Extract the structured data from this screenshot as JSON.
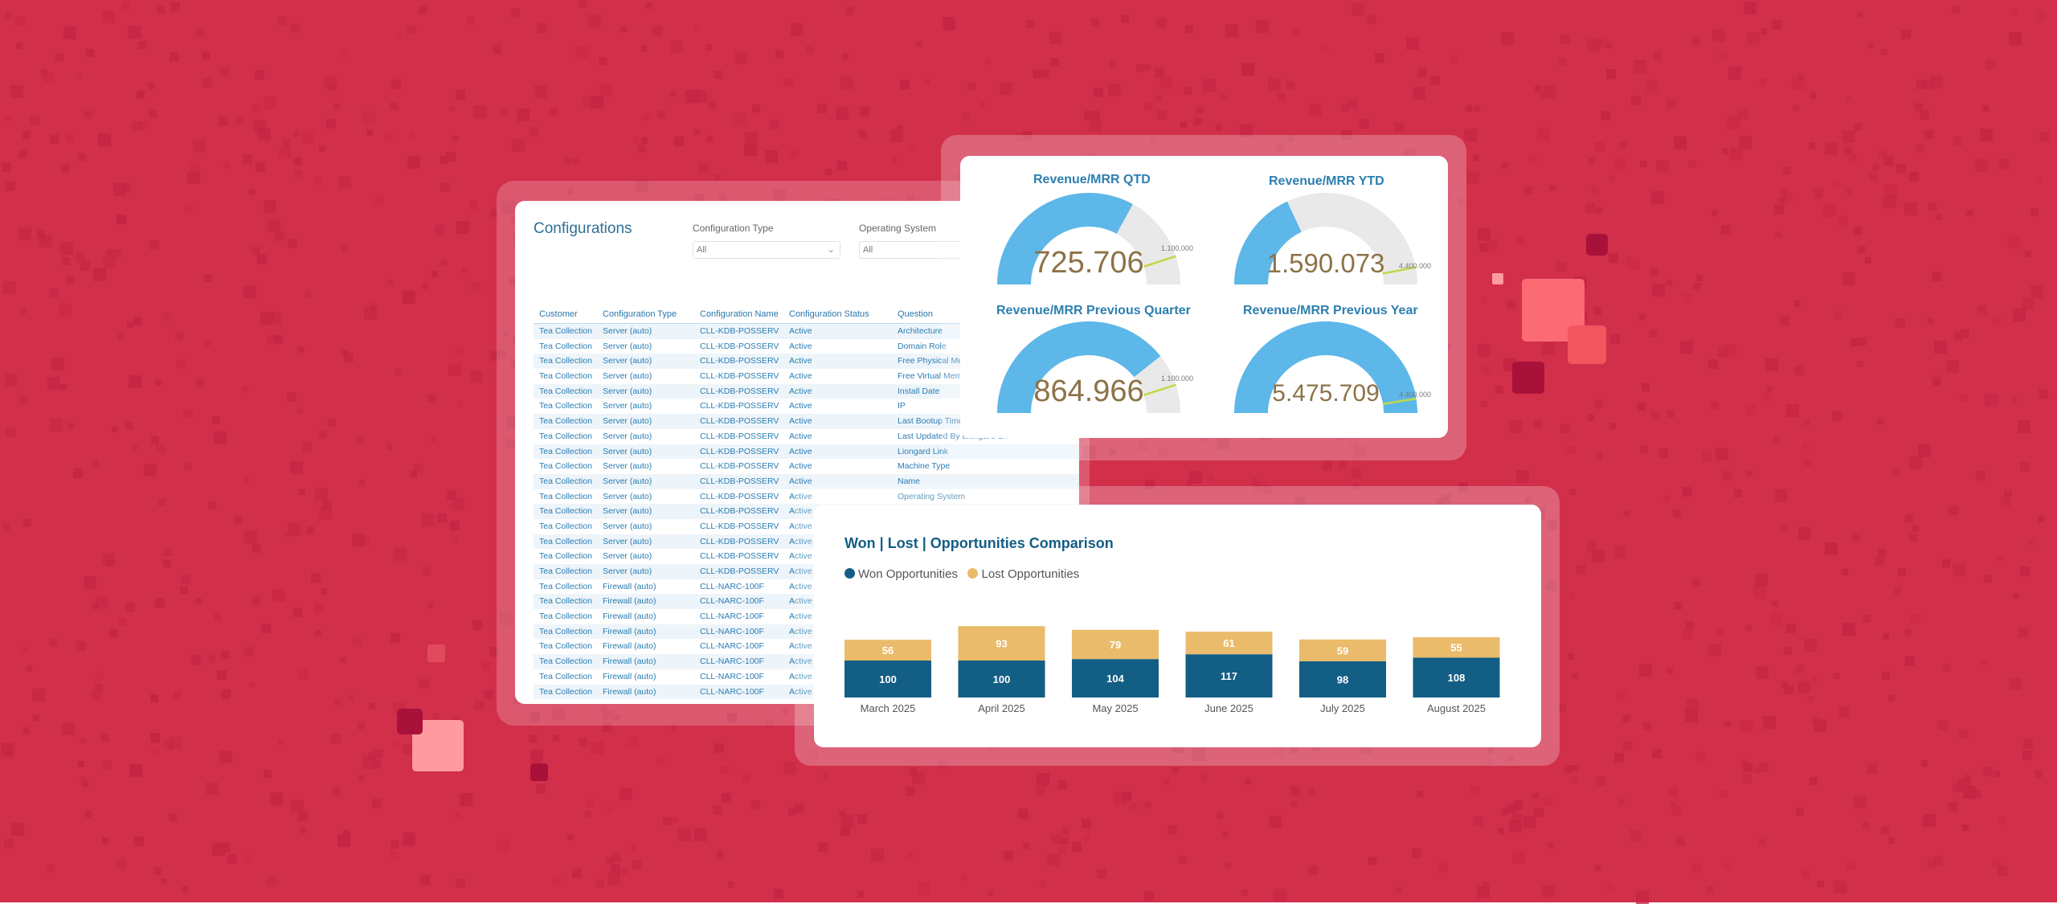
{
  "configurations": {
    "title": "Configurations",
    "filters": [
      {
        "label": "Configuration Type",
        "value": "All"
      },
      {
        "label": "Operating System",
        "value": "All"
      }
    ],
    "columns": [
      "Customer",
      "Configuration Type",
      "Configuration Name",
      "Configuration Status",
      "Question"
    ],
    "rows": [
      [
        "Tea Collection",
        "Server (auto)",
        "CLL-KDB-POSSERV",
        "Active",
        "Architecture"
      ],
      [
        "Tea Collection",
        "Server (auto)",
        "CLL-KDB-POSSERV",
        "Active",
        "Domain Role"
      ],
      [
        "Tea Collection",
        "Server (auto)",
        "CLL-KDB-POSSERV",
        "Active",
        "Free Physical Memory"
      ],
      [
        "Tea Collection",
        "Server (auto)",
        "CLL-KDB-POSSERV",
        "Active",
        "Free Virtual Memory"
      ],
      [
        "Tea Collection",
        "Server (auto)",
        "CLL-KDB-POSSERV",
        "Active",
        "Install Date"
      ],
      [
        "Tea Collection",
        "Server (auto)",
        "CLL-KDB-POSSERV",
        "Active",
        "IP"
      ],
      [
        "Tea Collection",
        "Server (auto)",
        "CLL-KDB-POSSERV",
        "Active",
        "Last Bootup Time"
      ],
      [
        "Tea Collection",
        "Server (auto)",
        "CLL-KDB-POSSERV",
        "Active",
        "Last Updated By Liongard On"
      ],
      [
        "Tea Collection",
        "Server (auto)",
        "CLL-KDB-POSSERV",
        "Active",
        "Liongard Link"
      ],
      [
        "Tea Collection",
        "Server (auto)",
        "CLL-KDB-POSSERV",
        "Active",
        "Machine Type"
      ],
      [
        "Tea Collection",
        "Server (auto)",
        "CLL-KDB-POSSERV",
        "Active",
        "Name"
      ],
      [
        "Tea Collection",
        "Server (auto)",
        "CLL-KDB-POSSERV",
        "Active",
        "Operating System"
      ],
      [
        "Tea Collection",
        "Server (auto)",
        "CLL-KDB-POSSERV",
        "Active",
        ""
      ],
      [
        "Tea Collection",
        "Server (auto)",
        "CLL-KDB-POSSERV",
        "Active",
        ""
      ],
      [
        "Tea Collection",
        "Server (auto)",
        "CLL-KDB-POSSERV",
        "Active",
        ""
      ],
      [
        "Tea Collection",
        "Server (auto)",
        "CLL-KDB-POSSERV",
        "Active",
        ""
      ],
      [
        "Tea Collection",
        "Server (auto)",
        "CLL-KDB-POSSERV",
        "Active",
        ""
      ],
      [
        "Tea Collection",
        "Firewall (auto)",
        "CLL-NARC-100F",
        "Active",
        ""
      ],
      [
        "Tea Collection",
        "Firewall (auto)",
        "CLL-NARC-100F",
        "Active",
        ""
      ],
      [
        "Tea Collection",
        "Firewall (auto)",
        "CLL-NARC-100F",
        "Active",
        ""
      ],
      [
        "Tea Collection",
        "Firewall (auto)",
        "CLL-NARC-100F",
        "Active",
        ""
      ],
      [
        "Tea Collection",
        "Firewall (auto)",
        "CLL-NARC-100F",
        "Active",
        ""
      ],
      [
        "Tea Collection",
        "Firewall (auto)",
        "CLL-NARC-100F",
        "Active",
        ""
      ],
      [
        "Tea Collection",
        "Firewall (auto)",
        "CLL-NARC-100F",
        "Active",
        ""
      ],
      [
        "Tea Collection",
        "Firewall (auto)",
        "CLL-NARC-100F",
        "Active",
        ""
      ]
    ]
  },
  "gauges": [
    {
      "title": "Revenue/MRR QTD",
      "value": 725706,
      "display": "725.706",
      "target": "1.100.000",
      "max": 1100000,
      "needle": 0.9
    },
    {
      "title": "Revenue/MRR YTD",
      "value": 1590073,
      "display": "1.590.073",
      "target": "4.400.000",
      "max": 4400000,
      "needle": 0.94
    },
    {
      "title": "Revenue/MRR Previous Quarter",
      "value": 864966,
      "display": "864.966",
      "target": "1.100.000",
      "max": 1100000,
      "needle": 0.9
    },
    {
      "title": "Revenue/MRR Previous Year",
      "value": 5475709,
      "display": "5.475.709",
      "target": "4.400.000",
      "max": 5475709,
      "needle": 0.95
    }
  ],
  "colors": {
    "gauge_fill": "#5db7e8",
    "gauge_track": "#e9e9e9",
    "target_line": "#c2d84a",
    "won": "#135e85",
    "lost": "#e9bb6a"
  },
  "chart_data": {
    "type": "bar",
    "stacked": true,
    "title": "Won | Lost | Opportunities Comparison",
    "categories": [
      "March 2025",
      "April 2025",
      "May 2025",
      "June 2025",
      "July 2025",
      "August 2025"
    ],
    "series": [
      {
        "name": "Won Opportunities",
        "values": [
          100,
          100,
          104,
          117,
          98,
          108
        ]
      },
      {
        "name": "Lost Opportunities",
        "values": [
          56,
          93,
          79,
          61,
          59,
          55
        ]
      }
    ],
    "legend": "top-left",
    "grid": false
  }
}
